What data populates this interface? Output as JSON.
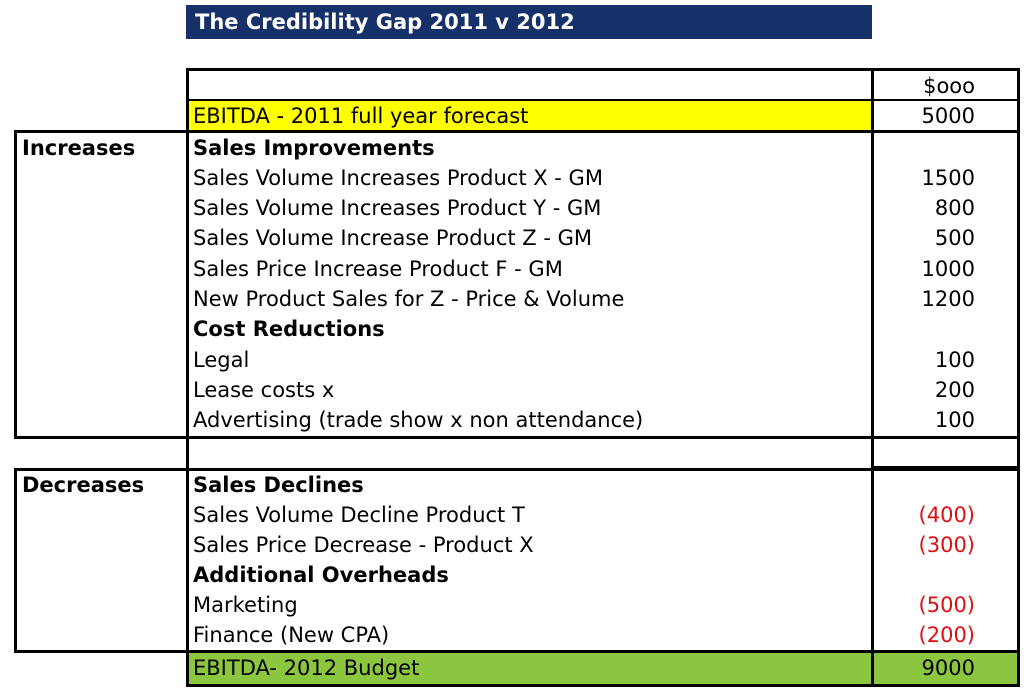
{
  "title": "The Credibility Gap 2011 v 2012",
  "units_header": "$ooo",
  "opening": {
    "label": "EBITDA - 2011 full year forecast",
    "value": "5000"
  },
  "increases": {
    "section_label": "Increases",
    "groups": [
      {
        "heading": "Sales Improvements",
        "rows": [
          {
            "label": "Sales Volume Increases Product X - GM",
            "value": "1500"
          },
          {
            "label": "Sales Volume  Increases Product  Y - GM",
            "value": "800"
          },
          {
            "label": "Sales Volume Increase Product Z - GM",
            "value": "500"
          },
          {
            "label": "Sales Price Increase Product F - GM",
            "value": "1000"
          },
          {
            "label": "New Product Sales for Z - Price & Volume",
            "value": "1200"
          }
        ]
      },
      {
        "heading": "Cost Reductions",
        "rows": [
          {
            "label": "Legal",
            "value": "100"
          },
          {
            "label": "Lease costs x",
            "value": "200"
          },
          {
            "label": "Advertising (trade show x non attendance)",
            "value": "100"
          }
        ]
      }
    ]
  },
  "decreases": {
    "section_label": "Decreases",
    "groups": [
      {
        "heading": "Sales Declines",
        "rows": [
          {
            "label": "Sales Volume Decline Product T",
            "value": "(400)"
          },
          {
            "label": "Sales Price Decrease - Product X",
            "value": "(300)"
          }
        ]
      },
      {
        "heading": "Additional Overheads",
        "rows": [
          {
            "label": "Marketing",
            "value": "(500)"
          },
          {
            "label": "Finance (New CPA)",
            "value": "(200)"
          }
        ]
      }
    ]
  },
  "closing": {
    "label": "EBITDA- 2012 Budget",
    "value": "9000"
  },
  "colors": {
    "title_background": "#16306a",
    "opening_highlight": "#ffff00",
    "closing_highlight": "#8cc63f",
    "negative_value": "#e01010"
  }
}
